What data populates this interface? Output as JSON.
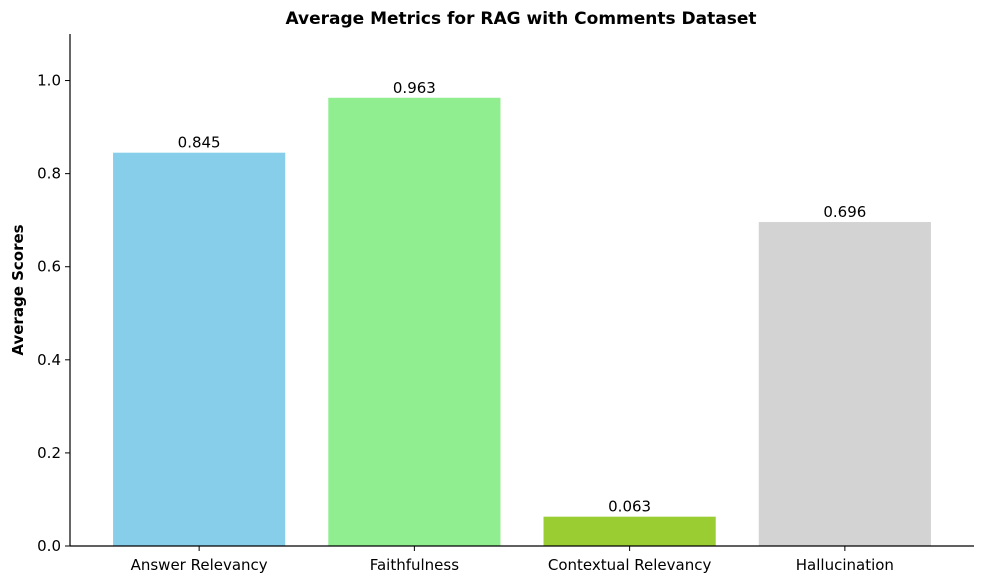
{
  "chart_data": {
    "type": "bar",
    "title": "Average Metrics for RAG with Comments Dataset",
    "xlabel": "",
    "ylabel": "Average Scores",
    "categories": [
      "Answer Relevancy",
      "Faithfulness",
      "Contextual Relevancy",
      "Hallucination"
    ],
    "values": [
      0.845,
      0.963,
      0.063,
      0.696
    ],
    "value_labels": [
      "0.845",
      "0.963",
      "0.063",
      "0.696"
    ],
    "colors": [
      "#87CEEB",
      "#90EE90",
      "#9ACD32",
      "#D3D3D3"
    ],
    "ylim": [
      0,
      1.1
    ],
    "yticks": [
      0.0,
      0.2,
      0.4,
      0.6,
      0.8,
      1.0
    ],
    "ytick_labels": [
      "0.0",
      "0.2",
      "0.4",
      "0.6",
      "0.8",
      "1.0"
    ],
    "grid": false,
    "legend": "none"
  }
}
